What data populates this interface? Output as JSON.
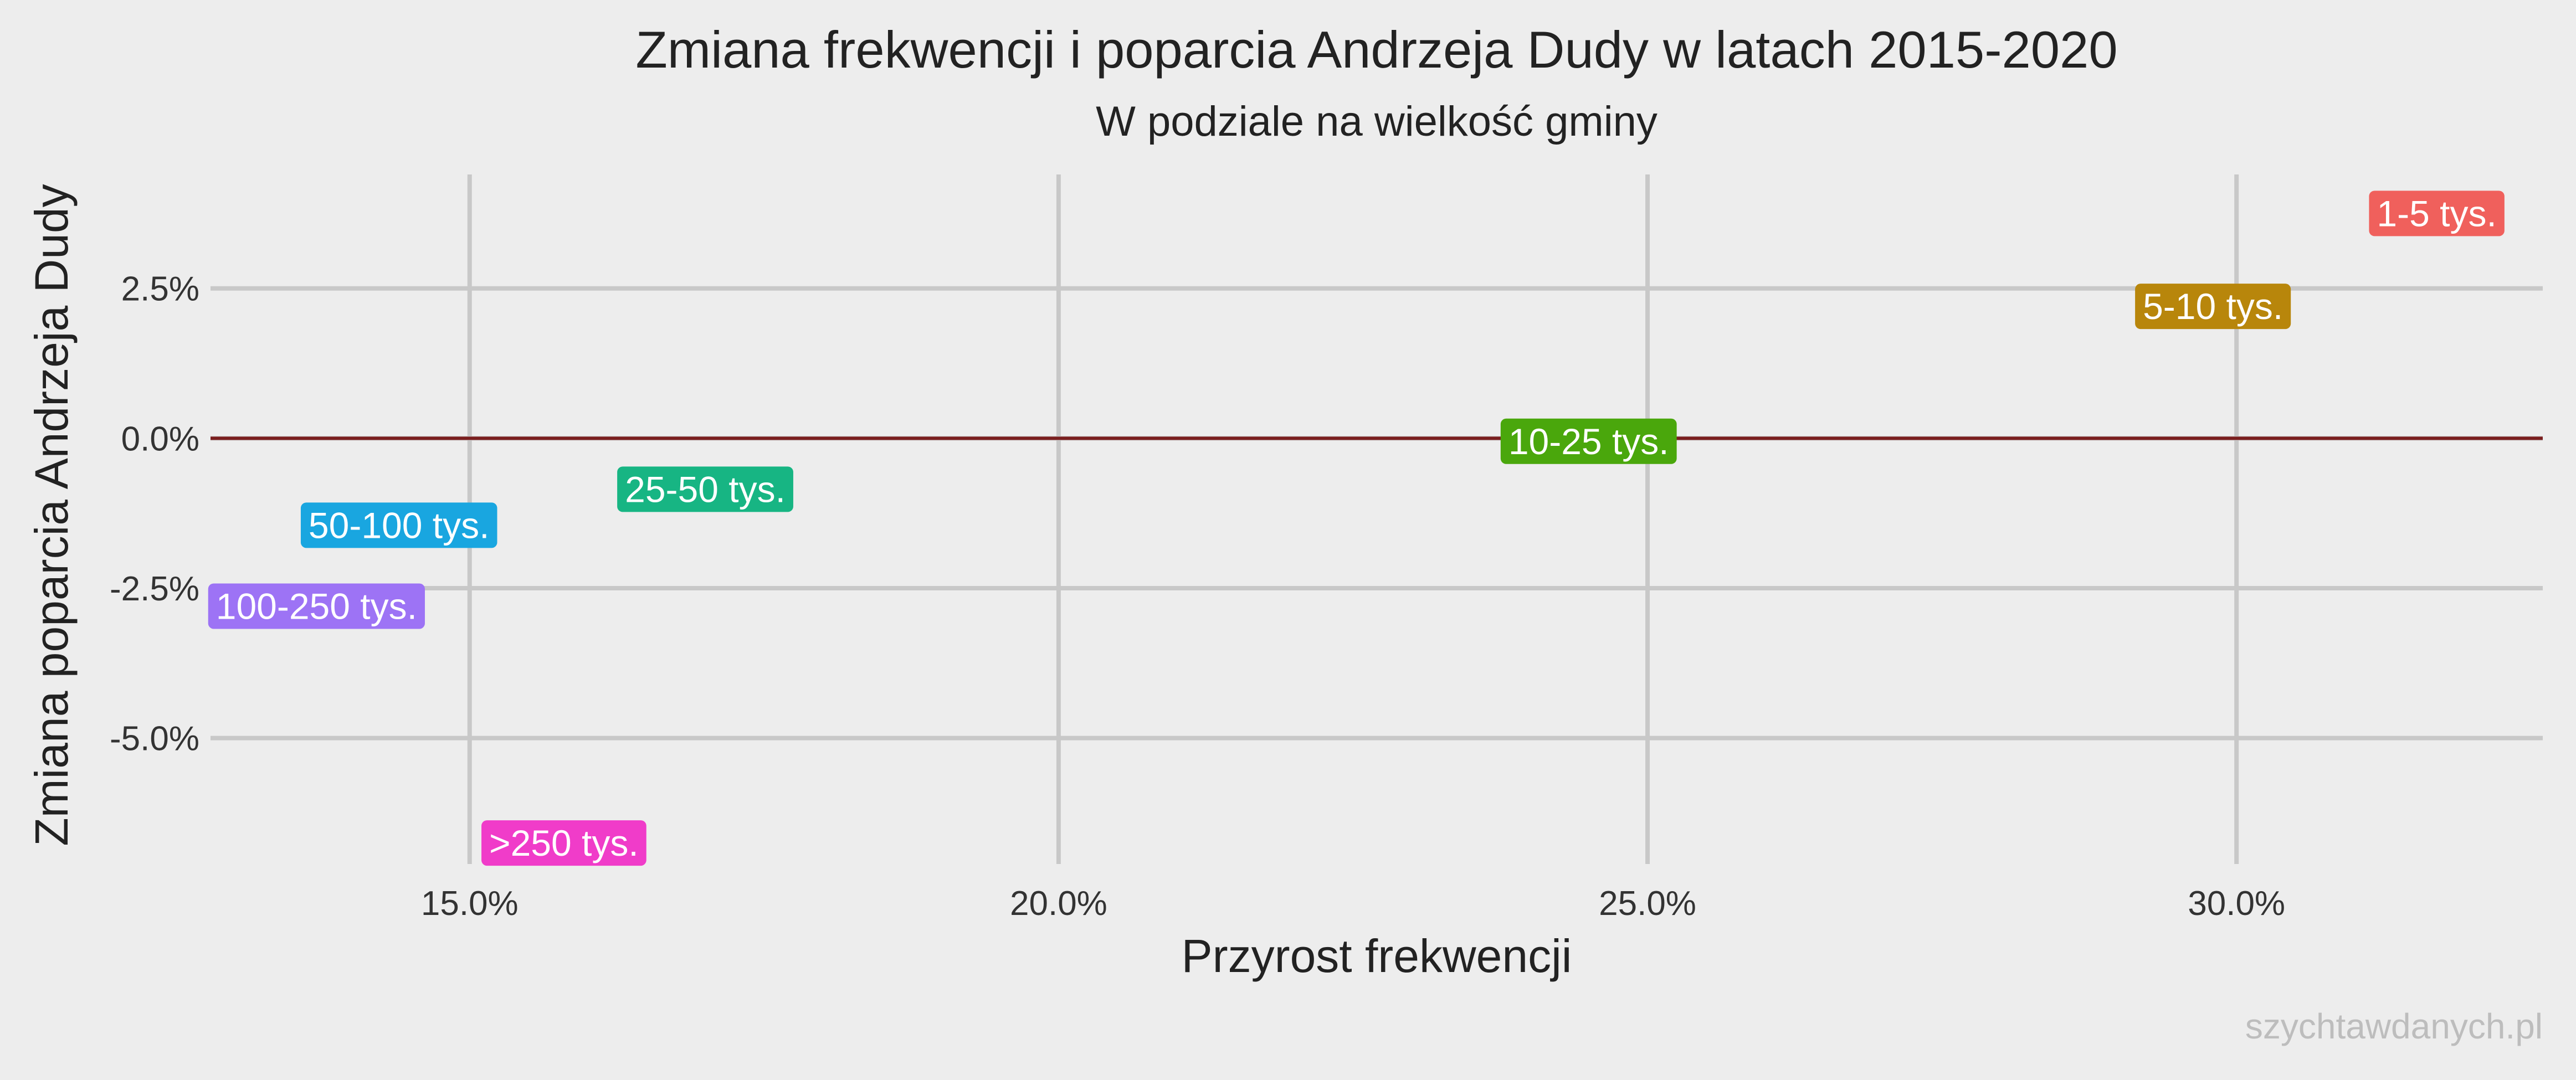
{
  "chart_data": {
    "type": "scatter",
    "title": "Zmiana frekwencji i poparcia Andrzeja Dudy w latach 2015-2020",
    "subtitle": "W podziale na wielkość gminy",
    "xlabel": "Przyrost frekwencji",
    "ylabel": "Zmiana poparcia Andrzeja Dudy",
    "caption": "szychtawdanych.pl",
    "xlim": [
      12.8,
      32.6
    ],
    "ylim": [
      -7.1,
      4.4
    ],
    "x_ticks": [
      15,
      20,
      25,
      30
    ],
    "x_tick_labels": [
      "15.0%",
      "20.0%",
      "25.0%",
      "30.0%"
    ],
    "y_ticks": [
      2.5,
      0,
      -2.5,
      -5
    ],
    "y_tick_labels": [
      "2.5%",
      "0.0%",
      "-2.5%",
      "-5.0%"
    ],
    "reference_line_y": 0,
    "reference_line_color": "#7a1e1e",
    "grid": true,
    "legend": "none",
    "points": [
      {
        "label": "1-5 tys.",
        "x": 31.7,
        "y": 3.75,
        "color": "#f0605c"
      },
      {
        "label": "5-10 tys.",
        "x": 29.8,
        "y": 2.2,
        "color": "#b8860b"
      },
      {
        "label": "10-25 tys.",
        "x": 24.5,
        "y": -0.05,
        "color": "#4aa70c"
      },
      {
        "label": "25-50 tys.",
        "x": 17.0,
        "y": -0.85,
        "color": "#17b583"
      },
      {
        "label": "50-100 tys.",
        "x": 14.4,
        "y": -1.45,
        "color": "#19a6e0"
      },
      {
        "label": "100-250 tys.",
        "x": 13.7,
        "y": -2.8,
        "color": "#9d73f5"
      },
      {
        "label": ">250 tys.",
        "x": 15.8,
        "y": -6.75,
        "color": "#f03cc9"
      }
    ]
  }
}
